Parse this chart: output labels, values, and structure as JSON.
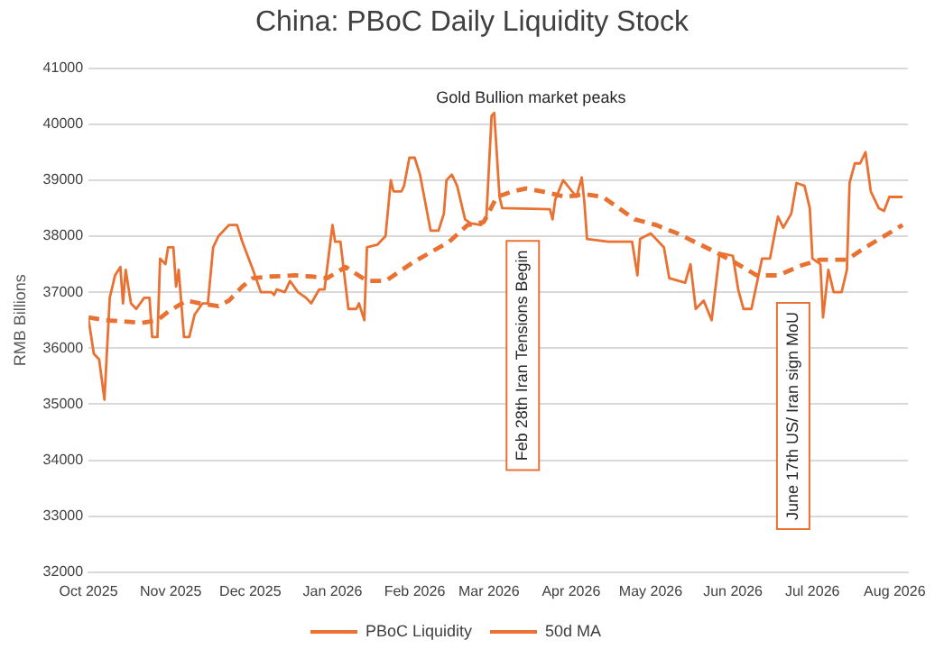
{
  "chart_data": {
    "type": "line",
    "title": "China: PBoC Daily Liquidity Stock",
    "ylabel": "RMB Billions",
    "x": [
      "2025-10-01",
      "2025-10-03",
      "2025-10-05",
      "2025-10-07",
      "2025-10-09",
      "2025-10-11",
      "2025-10-13",
      "2025-10-14",
      "2025-10-15",
      "2025-10-17",
      "2025-10-19",
      "2025-10-22",
      "2025-10-24",
      "2025-10-25",
      "2025-10-27",
      "2025-10-28",
      "2025-10-30",
      "2025-10-31",
      "2025-11-02",
      "2025-11-03",
      "2025-11-04",
      "2025-11-06",
      "2025-11-08",
      "2025-11-10",
      "2025-11-13",
      "2025-11-15",
      "2025-11-17",
      "2025-11-19",
      "2025-11-23",
      "2025-11-26",
      "2025-11-28",
      "2025-12-02",
      "2025-12-05",
      "2025-12-09",
      "2025-12-10",
      "2025-12-11",
      "2025-12-14",
      "2025-12-16",
      "2025-12-19",
      "2025-12-22",
      "2025-12-24",
      "2025-12-27",
      "2025-12-29",
      "2026-01-01",
      "2026-01-02",
      "2026-01-04",
      "2026-01-07",
      "2026-01-10",
      "2026-01-11",
      "2026-01-13",
      "2026-01-14",
      "2026-01-18",
      "2026-01-21",
      "2026-01-23",
      "2026-01-24",
      "2026-01-27",
      "2026-01-28",
      "2026-01-30",
      "2026-02-01",
      "2026-02-03",
      "2026-02-07",
      "2026-02-10",
      "2026-02-12",
      "2026-02-13",
      "2026-02-15",
      "2026-02-17",
      "2026-02-20",
      "2026-02-22",
      "2026-02-26",
      "2026-02-28",
      "2026-03-02",
      "2026-03-03",
      "2026-03-05",
      "2026-03-06",
      "2026-03-24",
      "2026-03-25",
      "2026-03-26",
      "2026-03-29",
      "2026-04-03",
      "2026-04-05",
      "2026-04-06",
      "2026-04-07",
      "2026-04-15",
      "2026-04-24",
      "2026-04-26",
      "2026-04-27",
      "2026-05-01",
      "2026-05-06",
      "2026-05-08",
      "2026-05-14",
      "2026-05-16",
      "2026-05-18",
      "2026-05-21",
      "2026-05-24",
      "2026-05-27",
      "2026-06-01",
      "2026-06-03",
      "2026-06-05",
      "2026-06-08",
      "2026-06-12",
      "2026-06-15",
      "2026-06-18",
      "2026-06-20",
      "2026-06-23",
      "2026-06-25",
      "2026-06-28",
      "2026-06-30",
      "2026-07-01",
      "2026-07-04",
      "2026-07-05",
      "2026-07-07",
      "2026-07-09",
      "2026-07-12",
      "2026-07-14",
      "2026-07-15",
      "2026-07-17",
      "2026-07-19",
      "2026-07-21",
      "2026-07-23",
      "2026-07-26",
      "2026-07-28",
      "2026-07-30",
      "2026-08-04"
    ],
    "series": [
      {
        "name": "PBoC Liquidity",
        "color": "#e97132",
        "line_style": "solid",
        "values": [
          36520,
          35900,
          35800,
          35080,
          36900,
          37300,
          37450,
          36800,
          37400,
          36800,
          36700,
          36900,
          36900,
          36200,
          36200,
          37600,
          37500,
          37800,
          37800,
          37100,
          37400,
          36200,
          36200,
          36600,
          36800,
          36800,
          37800,
          38000,
          38200,
          38200,
          37900,
          37400,
          37000,
          37000,
          36950,
          37050,
          37000,
          37200,
          37000,
          36900,
          36800,
          37050,
          37050,
          38200,
          37900,
          37900,
          36700,
          36700,
          36800,
          36500,
          37800,
          37850,
          38000,
          39000,
          38800,
          38800,
          38900,
          39400,
          39400,
          39100,
          38100,
          38100,
          38400,
          39000,
          39100,
          38900,
          38300,
          38230,
          38200,
          38300,
          40150,
          40200,
          38700,
          38500,
          38480,
          38300,
          38650,
          39000,
          38700,
          39050,
          38600,
          37950,
          37900,
          37900,
          37300,
          37950,
          38050,
          37800,
          37250,
          37170,
          37500,
          36700,
          36850,
          36500,
          37700,
          37650,
          37050,
          36700,
          36700,
          37600,
          37600,
          38350,
          38150,
          38400,
          38950,
          38900,
          38500,
          37600,
          37500,
          36550,
          37400,
          37000,
          37000,
          37400,
          38950,
          39300,
          39300,
          39500,
          38800,
          38500,
          38450,
          38700,
          38700
        ]
      },
      {
        "name": "50d MA",
        "color": "#e97132",
        "line_style": "dashed",
        "x": [
          "2025-10-01",
          "2025-10-07",
          "2025-10-14",
          "2025-10-21",
          "2025-10-27",
          "2025-10-31",
          "2025-11-07",
          "2025-11-12",
          "2025-11-19",
          "2025-11-23",
          "2025-11-28",
          "2025-12-02",
          "2025-12-09",
          "2025-12-18",
          "2025-12-24",
          "2025-12-30",
          "2026-01-06",
          "2026-01-14",
          "2026-01-21",
          "2026-02-01",
          "2026-02-14",
          "2026-02-21",
          "2026-02-27",
          "2026-03-04",
          "2026-03-10",
          "2026-03-15",
          "2026-03-21",
          "2026-03-30",
          "2026-04-06",
          "2026-04-13",
          "2026-04-19",
          "2026-04-25",
          "2026-05-03",
          "2026-05-11",
          "2026-05-24",
          "2026-06-01",
          "2026-06-10",
          "2026-06-18",
          "2026-06-27",
          "2026-07-04",
          "2026-07-14",
          "2026-07-21",
          "2026-08-04"
        ],
        "values": [
          36550,
          36500,
          36480,
          36450,
          36500,
          36650,
          36850,
          36800,
          36750,
          36850,
          37100,
          37250,
          37280,
          37300,
          37280,
          37250,
          37450,
          37200,
          37200,
          37550,
          37900,
          38200,
          38250,
          38700,
          38800,
          38850,
          38800,
          38700,
          38750,
          38700,
          38500,
          38300,
          38200,
          38050,
          37750,
          37550,
          37300,
          37300,
          37480,
          37580,
          37580,
          37800,
          38200
        ]
      }
    ],
    "xlim": [
      "2025-10-01",
      "2026-08-06"
    ],
    "xticks": [
      {
        "value": "2025-10-01",
        "label": "Oct 2025"
      },
      {
        "value": "2025-11-01",
        "label": "Nov 2025"
      },
      {
        "value": "2025-12-01",
        "label": "Dec 2025"
      },
      {
        "value": "2026-01-01",
        "label": "Jan 2026"
      },
      {
        "value": "2026-02-01",
        "label": "Feb 2026"
      },
      {
        "value": "2026-03-01",
        "label": "Mar 2026"
      },
      {
        "value": "2026-04-01",
        "label": "Apr 2026"
      },
      {
        "value": "2026-05-01",
        "label": "May 2026"
      },
      {
        "value": "2026-06-01",
        "label": "Jun 2026"
      },
      {
        "value": "2026-07-01",
        "label": "Jul 2026"
      },
      {
        "value": "2026-08-01",
        "label": "Aug 2026"
      }
    ],
    "ylim": [
      32000,
      41000
    ],
    "yticks": [
      32000,
      33000,
      34000,
      35000,
      36000,
      37000,
      38000,
      39000,
      40000,
      41000
    ],
    "grid": "y",
    "legend": "bottom",
    "marker": "none",
    "annotations": [
      "Gold Bullion market peaks",
      "Feb 28th Iran Tensions Begin",
      "June 17th US/ Iran sign MoU"
    ]
  }
}
